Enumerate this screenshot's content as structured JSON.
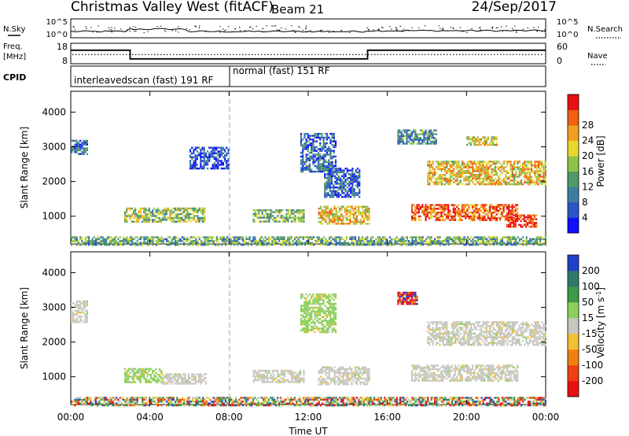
{
  "header": {
    "station": "Christmas Valley West (fitACF)",
    "beam": "Beam 21",
    "date": "24/Sep/2017"
  },
  "noise_panel": {
    "left_label": "N.Sky",
    "left_ticks": [
      "10^5",
      "10^0"
    ],
    "right_ticks": [
      "10^5",
      "10^0"
    ],
    "right_label": "N.Search"
  },
  "freq_panel": {
    "left_label_1": "Freq.",
    "left_label_2": "[MHz]",
    "left_ticks": [
      "18",
      "8"
    ],
    "right_ticks": [
      "60",
      "0"
    ],
    "right_label": "Nave",
    "freq_steps": [
      {
        "from_h": 0,
        "to_h": 3,
        "mhz": 14.6
      },
      {
        "from_h": 3,
        "to_h": 15,
        "mhz": 10.4
      },
      {
        "from_h": 15,
        "to_h": 24,
        "mhz": 14.6
      }
    ],
    "nave_level": 0.45
  },
  "cpid_panel": {
    "label": "CPID",
    "entries": [
      {
        "text": "interleavedscan (fast) 191 RF",
        "start_h": 0
      },
      {
        "text": "normal (fast) 151 RF",
        "start_h": 8
      }
    ]
  },
  "chart_data": [
    {
      "type": "heatmap",
      "title": "",
      "xlabel": "",
      "ylabel": "Slant Range [km]",
      "xlim_hours": [
        0,
        24
      ],
      "ylim_km": [
        200,
        4600
      ],
      "yticks": [
        "1000",
        "2000",
        "3000",
        "4000"
      ],
      "xticks_hours": [
        0,
        4,
        8,
        12,
        16,
        20,
        24
      ],
      "colorbar": {
        "label": "Power [dB]",
        "ticks": [
          "4",
          "8",
          "12",
          "16",
          "20",
          "24",
          "28"
        ],
        "colors": [
          "#1010ff",
          "#2a55c8",
          "#3d7ea0",
          "#4f9966",
          "#8cc44a",
          "#e8d830",
          "#f0a020",
          "#f06010",
          "#e81010"
        ]
      },
      "echo_regions": [
        {
          "t0": 0.0,
          "t1": 0.8,
          "r0": 2800,
          "r1": 3200,
          "level": 0.2
        },
        {
          "t0": 2.7,
          "t1": 6.8,
          "r0": 850,
          "r1": 1250,
          "level": 0.5
        },
        {
          "t0": 6.0,
          "t1": 8.0,
          "r0": 2400,
          "r1": 3000,
          "level": 0.15
        },
        {
          "t0": 9.2,
          "t1": 11.8,
          "r0": 850,
          "r1": 1200,
          "level": 0.45
        },
        {
          "t0": 11.6,
          "t1": 13.4,
          "r0": 2300,
          "r1": 3400,
          "level": 0.2
        },
        {
          "t0": 12.8,
          "t1": 14.6,
          "r0": 1550,
          "r1": 2400,
          "level": 0.2
        },
        {
          "t0": 12.5,
          "t1": 15.1,
          "r0": 800,
          "r1": 1300,
          "level": 0.65
        },
        {
          "t0": 17.2,
          "t1": 22.6,
          "r0": 900,
          "r1": 1350,
          "level": 0.85
        },
        {
          "t0": 18.0,
          "t1": 24.0,
          "r0": 1900,
          "r1": 2600,
          "level": 0.65
        },
        {
          "t0": 22.0,
          "t1": 23.5,
          "r0": 700,
          "r1": 1050,
          "level": 0.9
        },
        {
          "t0": 16.5,
          "t1": 18.5,
          "r0": 3100,
          "r1": 3500,
          "level": 0.35
        },
        {
          "t0": 20.0,
          "t1": 21.5,
          "r0": 3050,
          "r1": 3300,
          "level": 0.6
        },
        {
          "t0": 0.0,
          "t1": 24.0,
          "r0": 200,
          "r1": 420,
          "level": 0.4
        }
      ]
    },
    {
      "type": "heatmap",
      "title": "",
      "xlabel": "Time UT",
      "ylabel": "Slant Range [km]",
      "xlim_hours": [
        0,
        24
      ],
      "ylim_km": [
        200,
        4600
      ],
      "yticks": [
        "1000",
        "2000",
        "3000",
        "4000"
      ],
      "xticks": [
        "00:00",
        "04:00",
        "08:00",
        "12:00",
        "16:00",
        "20:00",
        "00:00"
      ],
      "colorbar": {
        "label": "Velocity [m s^-1]",
        "ticks": [
          "200",
          "100",
          "50",
          "15",
          "-15",
          "-50",
          "-100",
          "-200"
        ],
        "colors": [
          "#2040c8",
          "#2f7a6a",
          "#3c9a4a",
          "#8cd05a",
          "#c8c8c0",
          "#f2c030",
          "#f08010",
          "#ee4010",
          "#e81010"
        ]
      },
      "echo_regions": [
        {
          "t0": 0.0,
          "t1": 0.8,
          "r0": 2600,
          "r1": 3200,
          "kind": "grey"
        },
        {
          "t0": 2.7,
          "t1": 4.6,
          "r0": 850,
          "r1": 1250,
          "kind": "green"
        },
        {
          "t0": 4.6,
          "t1": 6.8,
          "r0": 800,
          "r1": 1100,
          "kind": "grey"
        },
        {
          "t0": 9.2,
          "t1": 11.8,
          "r0": 850,
          "r1": 1200,
          "kind": "grey"
        },
        {
          "t0": 11.6,
          "t1": 13.4,
          "r0": 2300,
          "r1": 3400,
          "kind": "green"
        },
        {
          "t0": 12.5,
          "t1": 15.1,
          "r0": 800,
          "r1": 1300,
          "kind": "grey"
        },
        {
          "t0": 17.2,
          "t1": 22.6,
          "r0": 900,
          "r1": 1350,
          "kind": "grey"
        },
        {
          "t0": 18.0,
          "t1": 24.0,
          "r0": 1900,
          "r1": 2600,
          "kind": "grey"
        },
        {
          "t0": 16.5,
          "t1": 17.5,
          "r0": 3100,
          "r1": 3450,
          "kind": "red"
        },
        {
          "t0": 0.0,
          "t1": 24.0,
          "r0": 200,
          "r1": 420,
          "kind": "mixed"
        }
      ]
    }
  ]
}
